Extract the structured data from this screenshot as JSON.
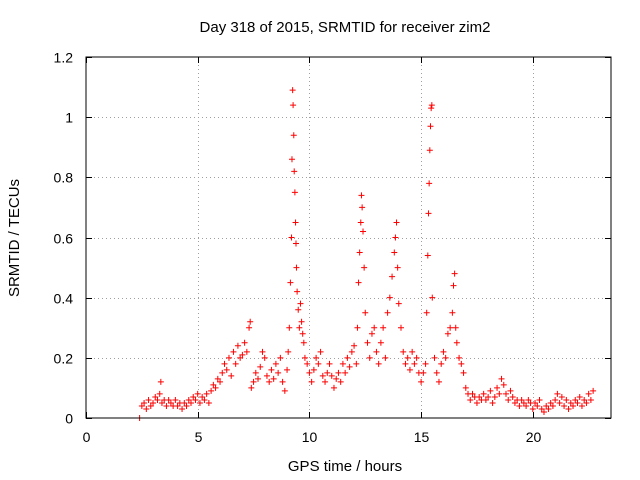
{
  "chart_data": {
    "type": "scatter",
    "title": "Day 318 of 2015, SRMTID for receiver zim2",
    "xlabel": "GPS time / hours",
    "ylabel": "SRMTID / TECUs",
    "xlim": [
      0,
      23.5
    ],
    "ylim": [
      0,
      1.2
    ],
    "xticks": [
      0,
      5,
      10,
      15,
      20
    ],
    "xtick_labels": [
      "0",
      "5",
      "10",
      "15",
      "20"
    ],
    "yticks": [
      0,
      0.2,
      0.4,
      0.6,
      0.8,
      1.0,
      1.2
    ],
    "ytick_labels": [
      "0",
      "0.2",
      "0.4",
      "0.6",
      "0.8",
      "1",
      "1.2"
    ],
    "grid": true,
    "marker": "+",
    "color": "#ff0000",
    "series": [
      {
        "name": "SRMTID",
        "points": [
          [
            2.4,
            0.0
          ],
          [
            2.5,
            0.04
          ],
          [
            2.6,
            0.05
          ],
          [
            2.7,
            0.03
          ],
          [
            2.8,
            0.06
          ],
          [
            2.9,
            0.04
          ],
          [
            3.0,
            0.05
          ],
          [
            3.1,
            0.07
          ],
          [
            3.2,
            0.06
          ],
          [
            3.3,
            0.08
          ],
          [
            3.35,
            0.12
          ],
          [
            3.4,
            0.05
          ],
          [
            3.5,
            0.06
          ],
          [
            3.6,
            0.04
          ],
          [
            3.7,
            0.06
          ],
          [
            3.8,
            0.05
          ],
          [
            3.9,
            0.04
          ],
          [
            4.0,
            0.06
          ],
          [
            4.1,
            0.04
          ],
          [
            4.2,
            0.05
          ],
          [
            4.3,
            0.03
          ],
          [
            4.4,
            0.05
          ],
          [
            4.5,
            0.04
          ],
          [
            4.6,
            0.06
          ],
          [
            4.7,
            0.05
          ],
          [
            4.8,
            0.07
          ],
          [
            4.9,
            0.06
          ],
          [
            5.0,
            0.08
          ],
          [
            5.1,
            0.05
          ],
          [
            5.2,
            0.07
          ],
          [
            5.3,
            0.06
          ],
          [
            5.4,
            0.08
          ],
          [
            5.5,
            0.05
          ],
          [
            5.6,
            0.09
          ],
          [
            5.7,
            0.11
          ],
          [
            5.8,
            0.1
          ],
          [
            5.9,
            0.13
          ],
          [
            6.0,
            0.12
          ],
          [
            6.1,
            0.15
          ],
          [
            6.2,
            0.18
          ],
          [
            6.3,
            0.16
          ],
          [
            6.4,
            0.2
          ],
          [
            6.5,
            0.14
          ],
          [
            6.6,
            0.22
          ],
          [
            6.7,
            0.18
          ],
          [
            6.8,
            0.24
          ],
          [
            6.9,
            0.2
          ],
          [
            7.0,
            0.21
          ],
          [
            7.1,
            0.25
          ],
          [
            7.2,
            0.22
          ],
          [
            7.3,
            0.3
          ],
          [
            7.35,
            0.32
          ],
          [
            7.4,
            0.1
          ],
          [
            7.5,
            0.12
          ],
          [
            7.6,
            0.15
          ],
          [
            7.7,
            0.13
          ],
          [
            7.8,
            0.17
          ],
          [
            7.9,
            0.22
          ],
          [
            8.0,
            0.2
          ],
          [
            8.1,
            0.14
          ],
          [
            8.2,
            0.12
          ],
          [
            8.3,
            0.16
          ],
          [
            8.4,
            0.13
          ],
          [
            8.5,
            0.18
          ],
          [
            8.6,
            0.15
          ],
          [
            8.7,
            0.2
          ],
          [
            8.8,
            0.12
          ],
          [
            8.9,
            0.09
          ],
          [
            9.0,
            0.16
          ],
          [
            9.05,
            0.22
          ],
          [
            9.1,
            0.3
          ],
          [
            9.15,
            0.45
          ],
          [
            9.2,
            0.6
          ],
          [
            9.22,
            0.86
          ],
          [
            9.25,
            1.09
          ],
          [
            9.27,
            1.04
          ],
          [
            9.3,
            0.94
          ],
          [
            9.32,
            0.82
          ],
          [
            9.35,
            0.75
          ],
          [
            9.38,
            0.65
          ],
          [
            9.4,
            0.58
          ],
          [
            9.42,
            0.5
          ],
          [
            9.45,
            0.42
          ],
          [
            9.5,
            0.36
          ],
          [
            9.55,
            0.3
          ],
          [
            9.6,
            0.38
          ],
          [
            9.65,
            0.32
          ],
          [
            9.7,
            0.28
          ],
          [
            9.75,
            0.25
          ],
          [
            9.8,
            0.2
          ],
          [
            9.9,
            0.18
          ],
          [
            10.0,
            0.15
          ],
          [
            10.1,
            0.12
          ],
          [
            10.2,
            0.16
          ],
          [
            10.3,
            0.2
          ],
          [
            10.4,
            0.18
          ],
          [
            10.5,
            0.22
          ],
          [
            10.6,
            0.14
          ],
          [
            10.7,
            0.12
          ],
          [
            10.8,
            0.15
          ],
          [
            10.9,
            0.18
          ],
          [
            11.0,
            0.14
          ],
          [
            11.1,
            0.1
          ],
          [
            11.2,
            0.13
          ],
          [
            11.3,
            0.15
          ],
          [
            11.4,
            0.12
          ],
          [
            11.5,
            0.18
          ],
          [
            11.6,
            0.15
          ],
          [
            11.7,
            0.2
          ],
          [
            11.8,
            0.17
          ],
          [
            11.9,
            0.22
          ],
          [
            12.0,
            0.24
          ],
          [
            12.1,
            0.18
          ],
          [
            12.15,
            0.3
          ],
          [
            12.2,
            0.45
          ],
          [
            12.25,
            0.55
          ],
          [
            12.3,
            0.65
          ],
          [
            12.33,
            0.74
          ],
          [
            12.36,
            0.7
          ],
          [
            12.4,
            0.62
          ],
          [
            12.45,
            0.5
          ],
          [
            12.5,
            0.35
          ],
          [
            12.6,
            0.25
          ],
          [
            12.7,
            0.2
          ],
          [
            12.8,
            0.28
          ],
          [
            12.9,
            0.3
          ],
          [
            13.0,
            0.22
          ],
          [
            13.1,
            0.18
          ],
          [
            13.2,
            0.25
          ],
          [
            13.3,
            0.3
          ],
          [
            13.4,
            0.2
          ],
          [
            13.5,
            0.35
          ],
          [
            13.6,
            0.4
          ],
          [
            13.7,
            0.47
          ],
          [
            13.8,
            0.55
          ],
          [
            13.85,
            0.6
          ],
          [
            13.9,
            0.65
          ],
          [
            13.95,
            0.5
          ],
          [
            14.0,
            0.38
          ],
          [
            14.1,
            0.3
          ],
          [
            14.2,
            0.22
          ],
          [
            14.3,
            0.18
          ],
          [
            14.4,
            0.2
          ],
          [
            14.5,
            0.16
          ],
          [
            14.6,
            0.22
          ],
          [
            14.7,
            0.18
          ],
          [
            14.8,
            0.2
          ],
          [
            14.9,
            0.15
          ],
          [
            15.0,
            0.12
          ],
          [
            15.1,
            0.15
          ],
          [
            15.2,
            0.18
          ],
          [
            15.25,
            0.35
          ],
          [
            15.3,
            0.54
          ],
          [
            15.33,
            0.68
          ],
          [
            15.36,
            0.78
          ],
          [
            15.39,
            0.89
          ],
          [
            15.42,
            0.97
          ],
          [
            15.45,
            1.03
          ],
          [
            15.48,
            1.04
          ],
          [
            15.5,
            0.4
          ],
          [
            15.6,
            0.2
          ],
          [
            15.7,
            0.15
          ],
          [
            15.8,
            0.12
          ],
          [
            15.9,
            0.18
          ],
          [
            16.0,
            0.22
          ],
          [
            16.1,
            0.2
          ],
          [
            16.2,
            0.28
          ],
          [
            16.3,
            0.3
          ],
          [
            16.4,
            0.35
          ],
          [
            16.45,
            0.44
          ],
          [
            16.5,
            0.48
          ],
          [
            16.55,
            0.3
          ],
          [
            16.6,
            0.25
          ],
          [
            16.7,
            0.2
          ],
          [
            16.8,
            0.18
          ],
          [
            16.9,
            0.15
          ],
          [
            17.0,
            0.1
          ],
          [
            17.1,
            0.08
          ],
          [
            17.2,
            0.06
          ],
          [
            17.3,
            0.08
          ],
          [
            17.4,
            0.07
          ],
          [
            17.5,
            0.05
          ],
          [
            17.6,
            0.07
          ],
          [
            17.7,
            0.06
          ],
          [
            17.8,
            0.08
          ],
          [
            17.9,
            0.06
          ],
          [
            18.0,
            0.07
          ],
          [
            18.1,
            0.09
          ],
          [
            18.2,
            0.05
          ],
          [
            18.3,
            0.07
          ],
          [
            18.4,
            0.1
          ],
          [
            18.5,
            0.08
          ],
          [
            18.6,
            0.13
          ],
          [
            18.7,
            0.11
          ],
          [
            18.8,
            0.08
          ],
          [
            18.9,
            0.06
          ],
          [
            19.0,
            0.09
          ],
          [
            19.1,
            0.07
          ],
          [
            19.2,
            0.05
          ],
          [
            19.3,
            0.06
          ],
          [
            19.4,
            0.04
          ],
          [
            19.5,
            0.06
          ],
          [
            19.6,
            0.05
          ],
          [
            19.7,
            0.04
          ],
          [
            19.8,
            0.06
          ],
          [
            19.9,
            0.05
          ],
          [
            20.0,
            0.03
          ],
          [
            20.1,
            0.05
          ],
          [
            20.2,
            0.04
          ],
          [
            20.3,
            0.06
          ],
          [
            20.4,
            0.03
          ],
          [
            20.5,
            0.02
          ],
          [
            20.6,
            0.04
          ],
          [
            20.7,
            0.03
          ],
          [
            20.8,
            0.05
          ],
          [
            20.9,
            0.04
          ],
          [
            21.0,
            0.06
          ],
          [
            21.1,
            0.08
          ],
          [
            21.2,
            0.05
          ],
          [
            21.3,
            0.07
          ],
          [
            21.4,
            0.04
          ],
          [
            21.5,
            0.06
          ],
          [
            21.6,
            0.03
          ],
          [
            21.7,
            0.05
          ],
          [
            21.8,
            0.04
          ],
          [
            21.9,
            0.06
          ],
          [
            22.0,
            0.05
          ],
          [
            22.1,
            0.07
          ],
          [
            22.2,
            0.04
          ],
          [
            22.3,
            0.06
          ],
          [
            22.4,
            0.05
          ],
          [
            22.5,
            0.08
          ],
          [
            22.6,
            0.06
          ],
          [
            22.7,
            0.09
          ]
        ]
      }
    ]
  }
}
